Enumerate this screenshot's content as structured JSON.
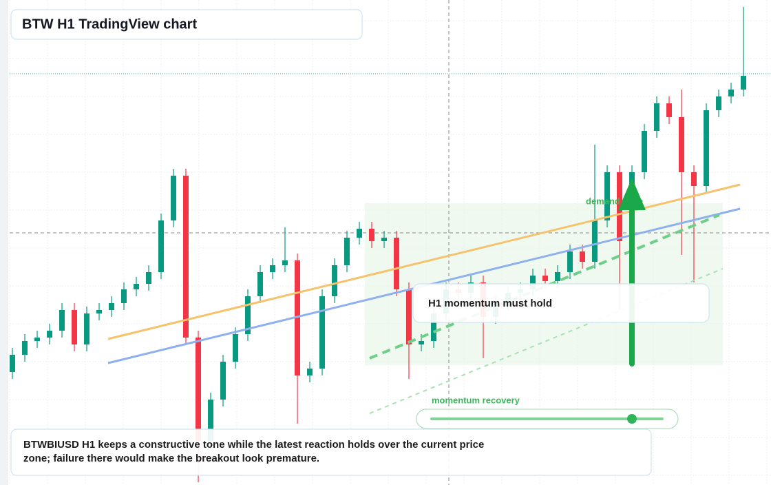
{
  "chart_data": {
    "type": "candlestick",
    "title": "BTW H1 TradingView chart",
    "zone_label": "demand zone",
    "callout": "H1 momentum must hold",
    "slider_label": "momentum recovery",
    "description": "BTWBIUSD H1 keeps a constructive tone while the latest reaction holds over the current price zone; failure there would make the breakout look premature.",
    "up_color": "#089981",
    "down_color": "#f23645",
    "open": [
      164,
      189,
      209,
      214,
      224,
      254,
      204,
      249,
      254,
      264,
      284,
      292,
      309,
      384,
      449,
      214,
      64,
      124,
      179,
      219,
      274,
      309,
      319,
      326,
      159,
      169,
      274,
      319,
      359,
      372,
      354,
      359,
      284,
      204,
      209,
      249,
      284,
      279,
      294,
      244,
      264,
      279,
      284,
      304,
      296,
      309,
      339,
      324,
      384,
      454,
      354,
      454,
      514,
      554,
      534,
      454,
      434,
      544,
      564,
      574
    ],
    "high": [
      199,
      219,
      224,
      234,
      264,
      264,
      259,
      264,
      274,
      294,
      302,
      319,
      394,
      459,
      459,
      224,
      134,
      189,
      229,
      284,
      319,
      329,
      374,
      336,
      179,
      284,
      329,
      369,
      382,
      382,
      369,
      369,
      294,
      219,
      259,
      294,
      294,
      304,
      304,
      274,
      289,
      294,
      314,
      314,
      319,
      349,
      349,
      494,
      464,
      464,
      464,
      524,
      564,
      564,
      574,
      464,
      554,
      574,
      584,
      694
    ],
    "low": [
      154,
      179,
      199,
      204,
      214,
      194,
      194,
      239,
      244,
      254,
      274,
      282,
      299,
      374,
      204,
      4,
      54,
      114,
      169,
      209,
      264,
      299,
      309,
      89,
      149,
      159,
      264,
      309,
      349,
      344,
      344,
      274,
      154,
      194,
      199,
      239,
      269,
      269,
      184,
      234,
      254,
      269,
      274,
      286,
      286,
      299,
      314,
      314,
      374,
      254,
      344,
      444,
      504,
      524,
      334,
      294,
      424,
      534,
      554,
      564
    ],
    "close": [
      189,
      209,
      214,
      224,
      254,
      204,
      249,
      254,
      264,
      284,
      292,
      309,
      384,
      449,
      214,
      64,
      124,
      179,
      219,
      274,
      309,
      319,
      326,
      159,
      169,
      274,
      319,
      359,
      372,
      354,
      359,
      284,
      204,
      209,
      249,
      284,
      279,
      294,
      244,
      264,
      279,
      284,
      304,
      296,
      309,
      339,
      324,
      384,
      454,
      354,
      454,
      514,
      554,
      534,
      454,
      434,
      544,
      564,
      574,
      594
    ]
  }
}
